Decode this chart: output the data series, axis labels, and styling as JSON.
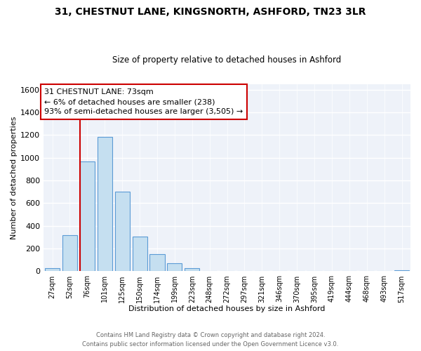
{
  "title_line1": "31, CHESTNUT LANE, KINGSNORTH, ASHFORD, TN23 3LR",
  "title_line2": "Size of property relative to detached houses in Ashford",
  "xlabel": "Distribution of detached houses by size in Ashford",
  "ylabel": "Number of detached properties",
  "bar_labels": [
    "27sqm",
    "52sqm",
    "76sqm",
    "101sqm",
    "125sqm",
    "150sqm",
    "174sqm",
    "199sqm",
    "223sqm",
    "248sqm",
    "272sqm",
    "297sqm",
    "321sqm",
    "346sqm",
    "370sqm",
    "395sqm",
    "419sqm",
    "444sqm",
    "468sqm",
    "493sqm",
    "517sqm"
  ],
  "bar_values": [
    30,
    320,
    970,
    1185,
    700,
    305,
    150,
    70,
    25,
    5,
    5,
    0,
    5,
    0,
    0,
    0,
    0,
    0,
    0,
    0,
    10
  ],
  "bar_color": "#c5dff0",
  "bar_edge_color": "#5b9bd5",
  "ylim": [
    0,
    1650
  ],
  "yticks": [
    0,
    200,
    400,
    600,
    800,
    1000,
    1200,
    1400,
    1600
  ],
  "property_line_bar_idx": 2,
  "property_line_color": "#cc0000",
  "annotation_title": "31 CHESTNUT LANE: 73sqm",
  "annotation_line1": "← 6% of detached houses are smaller (238)",
  "annotation_line2": "93% of semi-detached houses are larger (3,505) →",
  "annotation_box_edge": "#cc0000",
  "footer_line1": "Contains HM Land Registry data © Crown copyright and database right 2024.",
  "footer_line2": "Contains public sector information licensed under the Open Government Licence v3.0.",
  "bg_color": "#eef2f9"
}
